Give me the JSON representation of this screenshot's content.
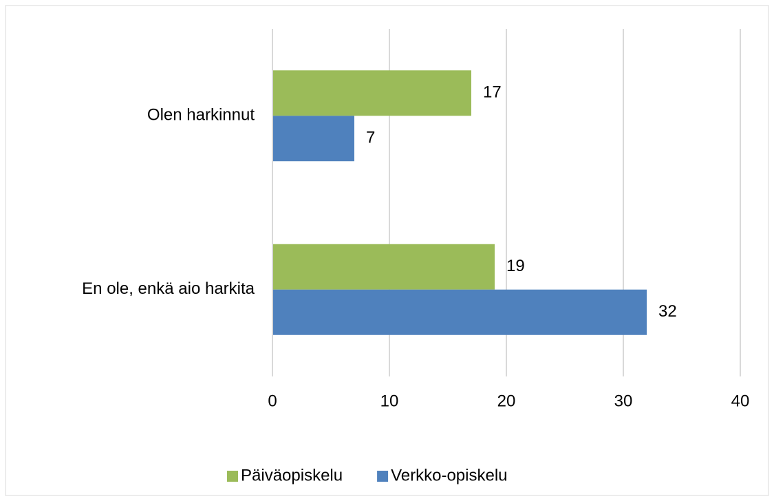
{
  "chart_data": {
    "type": "bar",
    "orientation": "horizontal",
    "categories": [
      "Olen harkinnut",
      "En ole, enkä aio harkita"
    ],
    "series": [
      {
        "name": "Päiväopiskelu",
        "color": "#9bbb59",
        "values": [
          17,
          19
        ]
      },
      {
        "name": "Verkko-opiskelu",
        "color": "#4f81bd",
        "values": [
          7,
          32
        ]
      }
    ],
    "xlim": [
      0,
      40
    ],
    "xticks": [
      0,
      10,
      20,
      30,
      40
    ],
    "grid": true,
    "legend": "bottom",
    "data_labels": true
  }
}
